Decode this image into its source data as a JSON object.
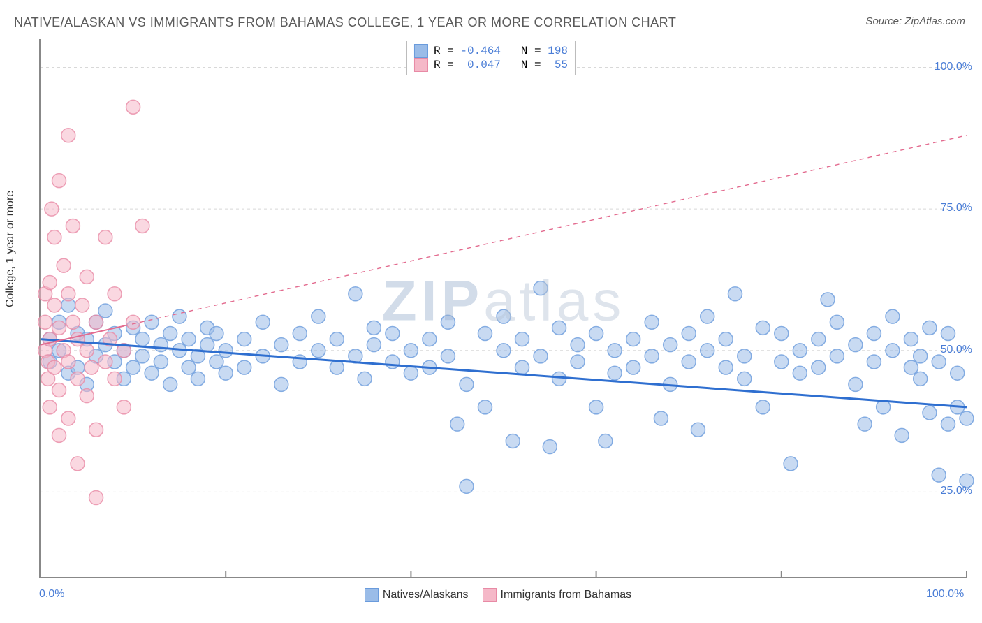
{
  "title": "NATIVE/ALASKAN VS IMMIGRANTS FROM BAHAMAS COLLEGE, 1 YEAR OR MORE CORRELATION CHART",
  "source": "Source: ZipAtlas.com",
  "ylabel": "College, 1 year or more",
  "watermark": "ZIPatlas",
  "chart": {
    "type": "scatter",
    "background_color": "#ffffff",
    "axis_color": "#888888",
    "grid_color": "#d8d8d8",
    "grid_dash": "4 4",
    "xlim": [
      0,
      100
    ],
    "ylim": [
      10,
      105
    ],
    "x_ticks": [
      0,
      20,
      40,
      60,
      80,
      100
    ],
    "x_tick_labels": {
      "0": "0.0%",
      "100": "100.0%"
    },
    "y_ticks": [
      25,
      50,
      75,
      100
    ],
    "y_tick_labels": {
      "25": "25.0%",
      "50": "50.0%",
      "75": "75.0%",
      "100": "100.0%"
    },
    "marker_radius": 10,
    "marker_opacity": 0.55,
    "series": [
      {
        "name": "Natives/Alaskans",
        "label": "Natives/Alaskans",
        "R": "-0.464",
        "N": "198",
        "fill": "#9abce8",
        "stroke": "#6a9bdc",
        "trend": {
          "x1": 0,
          "y1": 52,
          "x2": 100,
          "y2": 40,
          "solid_until": 100,
          "color": "#2f6fd0",
          "width": 3
        },
        "points": [
          [
            1,
            52
          ],
          [
            1,
            48
          ],
          [
            2,
            55
          ],
          [
            2,
            50
          ],
          [
            3,
            46
          ],
          [
            3,
            58
          ],
          [
            4,
            53
          ],
          [
            4,
            47
          ],
          [
            5,
            52
          ],
          [
            5,
            44
          ],
          [
            6,
            55
          ],
          [
            6,
            49
          ],
          [
            7,
            51
          ],
          [
            7,
            57
          ],
          [
            8,
            48
          ],
          [
            8,
            53
          ],
          [
            9,
            50
          ],
          [
            9,
            45
          ],
          [
            10,
            54
          ],
          [
            10,
            47
          ],
          [
            11,
            52
          ],
          [
            11,
            49
          ],
          [
            12,
            46
          ],
          [
            12,
            55
          ],
          [
            13,
            51
          ],
          [
            13,
            48
          ],
          [
            14,
            53
          ],
          [
            14,
            44
          ],
          [
            15,
            50
          ],
          [
            15,
            56
          ],
          [
            16,
            47
          ],
          [
            16,
            52
          ],
          [
            17,
            49
          ],
          [
            17,
            45
          ],
          [
            18,
            54
          ],
          [
            18,
            51
          ],
          [
            19,
            48
          ],
          [
            19,
            53
          ],
          [
            20,
            46
          ],
          [
            20,
            50
          ],
          [
            22,
            52
          ],
          [
            22,
            47
          ],
          [
            24,
            55
          ],
          [
            24,
            49
          ],
          [
            26,
            51
          ],
          [
            26,
            44
          ],
          [
            28,
            53
          ],
          [
            28,
            48
          ],
          [
            30,
            50
          ],
          [
            30,
            56
          ],
          [
            32,
            47
          ],
          [
            32,
            52
          ],
          [
            34,
            49
          ],
          [
            34,
            60
          ],
          [
            35,
            45
          ],
          [
            36,
            54
          ],
          [
            36,
            51
          ],
          [
            38,
            48
          ],
          [
            38,
            53
          ],
          [
            40,
            46
          ],
          [
            40,
            50
          ],
          [
            42,
            52
          ],
          [
            42,
            47
          ],
          [
            44,
            55
          ],
          [
            44,
            49
          ],
          [
            45,
            37
          ],
          [
            46,
            26
          ],
          [
            46,
            44
          ],
          [
            48,
            53
          ],
          [
            48,
            40
          ],
          [
            50,
            50
          ],
          [
            50,
            56
          ],
          [
            51,
            34
          ],
          [
            52,
            47
          ],
          [
            52,
            52
          ],
          [
            54,
            49
          ],
          [
            54,
            61
          ],
          [
            55,
            33
          ],
          [
            56,
            45
          ],
          [
            56,
            54
          ],
          [
            58,
            51
          ],
          [
            58,
            48
          ],
          [
            60,
            53
          ],
          [
            60,
            40
          ],
          [
            61,
            34
          ],
          [
            62,
            46
          ],
          [
            62,
            50
          ],
          [
            64,
            52
          ],
          [
            64,
            47
          ],
          [
            66,
            55
          ],
          [
            66,
            49
          ],
          [
            67,
            38
          ],
          [
            68,
            51
          ],
          [
            68,
            44
          ],
          [
            70,
            53
          ],
          [
            70,
            48
          ],
          [
            71,
            36
          ],
          [
            72,
            50
          ],
          [
            72,
            56
          ],
          [
            74,
            47
          ],
          [
            74,
            52
          ],
          [
            75,
            60
          ],
          [
            76,
            49
          ],
          [
            76,
            45
          ],
          [
            78,
            54
          ],
          [
            78,
            40
          ],
          [
            80,
            48
          ],
          [
            80,
            53
          ],
          [
            81,
            30
          ],
          [
            82,
            46
          ],
          [
            82,
            50
          ],
          [
            84,
            52
          ],
          [
            84,
            47
          ],
          [
            85,
            59
          ],
          [
            86,
            55
          ],
          [
            86,
            49
          ],
          [
            88,
            51
          ],
          [
            88,
            44
          ],
          [
            89,
            37
          ],
          [
            90,
            53
          ],
          [
            90,
            48
          ],
          [
            91,
            40
          ],
          [
            92,
            50
          ],
          [
            92,
            56
          ],
          [
            93,
            35
          ],
          [
            94,
            47
          ],
          [
            94,
            52
          ],
          [
            95,
            49
          ],
          [
            95,
            45
          ],
          [
            96,
            54
          ],
          [
            96,
            39
          ],
          [
            97,
            48
          ],
          [
            97,
            28
          ],
          [
            98,
            53
          ],
          [
            98,
            37
          ],
          [
            99,
            46
          ],
          [
            99,
            40
          ],
          [
            100,
            27
          ],
          [
            100,
            38
          ]
        ]
      },
      {
        "name": "Immigrants from Bahamas",
        "label": "Immigrants from Bahamas",
        "R": "0.047",
        "N": "55",
        "fill": "#f5b8c8",
        "stroke": "#e88aa5",
        "trend": {
          "x1": 0,
          "y1": 51,
          "x2": 100,
          "y2": 88,
          "solid_until": 9,
          "color": "#e36b8f",
          "width": 2
        },
        "points": [
          [
            0.5,
            50
          ],
          [
            0.5,
            55
          ],
          [
            0.5,
            60
          ],
          [
            0.8,
            45
          ],
          [
            0.8,
            48
          ],
          [
            1,
            62
          ],
          [
            1,
            40
          ],
          [
            1,
            52
          ],
          [
            1.2,
            75
          ],
          [
            1.5,
            70
          ],
          [
            1.5,
            58
          ],
          [
            1.5,
            47
          ],
          [
            2,
            80
          ],
          [
            2,
            54
          ],
          [
            2,
            43
          ],
          [
            2,
            35
          ],
          [
            2.5,
            65
          ],
          [
            2.5,
            50
          ],
          [
            3,
            88
          ],
          [
            3,
            60
          ],
          [
            3,
            48
          ],
          [
            3,
            38
          ],
          [
            3.5,
            55
          ],
          [
            3.5,
            72
          ],
          [
            4,
            52
          ],
          [
            4,
            45
          ],
          [
            4,
            30
          ],
          [
            4.5,
            58
          ],
          [
            5,
            50
          ],
          [
            5,
            42
          ],
          [
            5,
            63
          ],
          [
            5.5,
            47
          ],
          [
            6,
            55
          ],
          [
            6,
            36
          ],
          [
            6,
            24
          ],
          [
            7,
            70
          ],
          [
            7,
            48
          ],
          [
            7.5,
            52
          ],
          [
            8,
            45
          ],
          [
            8,
            60
          ],
          [
            9,
            50
          ],
          [
            9,
            40
          ],
          [
            10,
            55
          ],
          [
            10,
            93
          ],
          [
            11,
            72
          ]
        ]
      }
    ],
    "legend_bottom": [
      {
        "label": "Natives/Alaskans",
        "fill": "#9abce8",
        "stroke": "#6a9bdc"
      },
      {
        "label": "Immigrants from Bahamas",
        "fill": "#f5b8c8",
        "stroke": "#e88aa5"
      }
    ]
  }
}
